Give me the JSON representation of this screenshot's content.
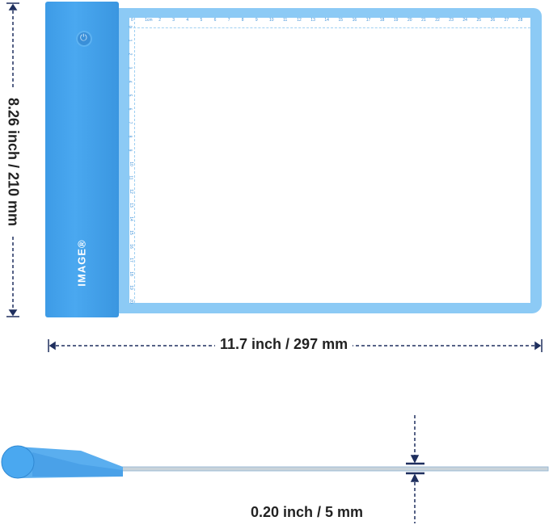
{
  "product": {
    "brand": "IMAGE®",
    "power_icon": "power-icon",
    "colors": {
      "body": "#3d9be6",
      "frame": "#8ccaf5",
      "dimension_lines": "#1f2f5e"
    }
  },
  "ruler": {
    "unit_label": "1cm",
    "top_max": 28,
    "side_max": 20
  },
  "dimensions": {
    "height": "8.26 inch / 210 mm",
    "width": "11.7 inch / 297 mm",
    "thickness": "0.20 inch / 5 mm"
  }
}
